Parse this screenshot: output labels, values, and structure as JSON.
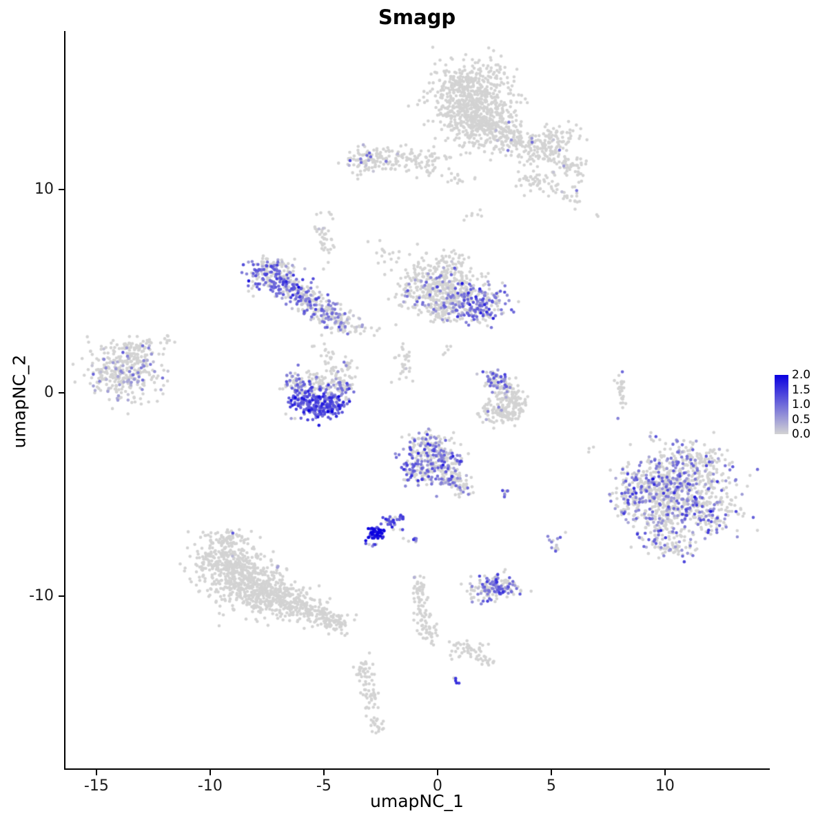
{
  "chart_data": {
    "type": "scatter",
    "title": "Smagp",
    "axes": {
      "xlabel": "umapNC_1",
      "ylabel": "umapNC_2",
      "xlim": [
        -16.36,
        14.55
      ],
      "ylim": [
        -18.47,
        17.8
      ],
      "x_ticks": [
        {
          "value": -15,
          "label": "-15"
        },
        {
          "value": -10,
          "label": "-10"
        },
        {
          "value": -5,
          "label": "-5"
        },
        {
          "value": 0,
          "label": "0"
        },
        {
          "value": 5,
          "label": "5"
        },
        {
          "value": 10,
          "label": "10"
        }
      ],
      "y_ticks": [
        {
          "value": 10,
          "label": "10"
        },
        {
          "value": 0,
          "label": "0"
        },
        {
          "value": -10,
          "label": "-10"
        }
      ],
      "grid": false
    },
    "legend": {
      "position": "right",
      "labels": [
        "2.0",
        "1.5",
        "1.0",
        "0.5",
        "0.0"
      ],
      "max": 2.0,
      "low": "#D3D3D3",
      "high": "#0A00E0"
    },
    "point_radius_px": 2.3,
    "clusters": [
      {
        "cx": 1.5,
        "cy": 14.4,
        "sx": 0.85,
        "sy": 0.95,
        "n": 650
      },
      {
        "cx": 2.1,
        "cy": 13.2,
        "sx": 0.7,
        "sy": 0.5,
        "rot": 20,
        "n": 170
      },
      {
        "cx": 3.4,
        "cy": 12.3,
        "sx": 0.75,
        "sy": 0.45,
        "rot": -15,
        "n": 150,
        "frac": 0.02,
        "mean": 0.6
      },
      {
        "cx": 4.8,
        "cy": 11.9,
        "sx": 0.5,
        "sy": 0.4,
        "n": 80,
        "frac": 0.05,
        "mean": 0.8
      },
      {
        "cx": 5.8,
        "cy": 11.1,
        "sx": 0.45,
        "sy": 0.35,
        "n": 50,
        "frac": 0.02,
        "mean": 0.5
      },
      {
        "cx": 5.3,
        "cy": 12.8,
        "sx": 0.5,
        "sy": 0.3,
        "n": 35
      },
      {
        "cx": -2.2,
        "cy": 11.5,
        "sx": 1.0,
        "sy": 0.3,
        "rot": 5,
        "n": 130,
        "frac": 0.03,
        "mean": 0.8
      },
      {
        "cx": -3.2,
        "cy": 11.5,
        "sx": 0.25,
        "sy": 0.35,
        "n": 30,
        "frac": 0.12,
        "mean": 1.0
      },
      {
        "cx": -0.3,
        "cy": 11.3,
        "sx": 0.5,
        "sy": 0.3,
        "n": 40,
        "frac": 0.02,
        "mean": 0.5
      },
      {
        "cx": 0.8,
        "cy": 10.6,
        "sx": 0.3,
        "sy": 0.2,
        "n": 14
      },
      {
        "cx": 4.3,
        "cy": 10.4,
        "sx": 0.55,
        "sy": 0.25,
        "rot": -10,
        "n": 45,
        "frac": 0.02,
        "mean": 0.5
      },
      {
        "cx": 5.9,
        "cy": 9.7,
        "sx": 0.3,
        "sy": 0.25,
        "n": 20,
        "frac": 0.05,
        "mean": 0.5
      },
      {
        "cx": 7.0,
        "cy": 8.8,
        "sx": 0.08,
        "sy": 0.08,
        "n": 2
      },
      {
        "cx": 1.6,
        "cy": 8.8,
        "sx": 0.3,
        "sy": 0.25,
        "n": 7
      },
      {
        "cx": -7.5,
        "cy": 5.8,
        "sx": 0.45,
        "sy": 0.4,
        "n": 110,
        "frac": 0.6,
        "mean": 0.9
      },
      {
        "cx": -6.6,
        "cy": 5.2,
        "sx": 0.45,
        "sy": 0.35,
        "rot": -30,
        "n": 100,
        "frac": 0.55,
        "mean": 0.9
      },
      {
        "cx": -5.8,
        "cy": 4.6,
        "sx": 0.4,
        "sy": 0.35,
        "rot": -35,
        "n": 90,
        "frac": 0.5,
        "mean": 0.8
      },
      {
        "cx": -5.0,
        "cy": 4.0,
        "sx": 0.4,
        "sy": 0.3,
        "rot": -30,
        "n": 80,
        "frac": 0.45,
        "mean": 0.8
      },
      {
        "cx": -4.4,
        "cy": 3.6,
        "sx": 0.35,
        "sy": 0.3,
        "rot": -20,
        "n": 60,
        "frac": 0.4,
        "mean": 0.7
      },
      {
        "cx": -6.9,
        "cy": 6.2,
        "sx": 0.5,
        "sy": 0.3,
        "rot": -20,
        "n": 40,
        "frac": 0.15,
        "mean": 0.5
      },
      {
        "cx": -3.6,
        "cy": 3.2,
        "sx": 0.4,
        "sy": 0.2,
        "rot": -10,
        "n": 25,
        "frac": 0.1,
        "mean": 0.5
      },
      {
        "cx": -5.0,
        "cy": 7.7,
        "sx": 0.18,
        "sy": 0.6,
        "rot": 10,
        "n": 35,
        "frac": 0.03,
        "mean": 0.5
      },
      {
        "cx": -4.7,
        "cy": 8.8,
        "sx": 0.12,
        "sy": 0.12,
        "n": 4
      },
      {
        "cx": -0.9,
        "cy": 5.1,
        "sx": 0.5,
        "sy": 0.55,
        "n": 130,
        "frac": 0.12,
        "mean": 0.7
      },
      {
        "cx": 0.2,
        "cy": 5.6,
        "sx": 0.6,
        "sy": 0.5,
        "n": 170,
        "frac": 0.1,
        "mean": 0.7
      },
      {
        "cx": 1.0,
        "cy": 4.8,
        "sx": 0.5,
        "sy": 0.45,
        "n": 140,
        "frac": 0.3,
        "mean": 0.8
      },
      {
        "cx": 1.95,
        "cy": 4.35,
        "sx": 0.55,
        "sy": 0.5,
        "n": 170,
        "frac": 0.55,
        "mean": 0.9
      },
      {
        "cx": 0.3,
        "cy": 4.1,
        "sx": 0.45,
        "sy": 0.35,
        "n": 80,
        "frac": 0.2,
        "mean": 0.7
      },
      {
        "cx": 0.6,
        "cy": 6.5,
        "sx": 0.3,
        "sy": 0.3,
        "n": 30,
        "frac": 0.05,
        "mean": 0.5
      },
      {
        "cx": -2.3,
        "cy": 7.0,
        "sx": 0.35,
        "sy": 0.35,
        "n": 16
      },
      {
        "cx": -1.5,
        "cy": 1.5,
        "sx": 0.2,
        "sy": 0.55,
        "rot": 15,
        "n": 30,
        "frac": 0.08,
        "mean": 0.6
      },
      {
        "cx": 0.3,
        "cy": 2.1,
        "sx": 0.25,
        "sy": 0.2,
        "n": 5
      },
      {
        "cx": -13.8,
        "cy": 1.1,
        "sx": 0.8,
        "sy": 0.75,
        "n": 330,
        "frac": 0.2,
        "mean": 0.55
      },
      {
        "cx": -13.2,
        "cy": 2.2,
        "sx": 0.5,
        "sy": 0.3,
        "n": 50,
        "frac": 0.1,
        "mean": 0.5
      },
      {
        "cx": -11.9,
        "cy": 2.5,
        "sx": 0.2,
        "sy": 0.15,
        "n": 8
      },
      {
        "cx": -6.3,
        "cy": 0.5,
        "sx": 0.25,
        "sy": 0.3,
        "n": 50,
        "frac": 0.45,
        "mean": 0.8
      },
      {
        "cx": -5.9,
        "cy": -0.3,
        "sx": 0.35,
        "sy": 0.3,
        "rot": 30,
        "n": 90,
        "frac": 0.75,
        "mean": 1.1
      },
      {
        "cx": -5.2,
        "cy": -0.75,
        "sx": 0.45,
        "sy": 0.3,
        "n": 120,
        "frac": 0.85,
        "mean": 1.2
      },
      {
        "cx": -4.5,
        "cy": -0.4,
        "sx": 0.3,
        "sy": 0.3,
        "rot": -30,
        "n": 80,
        "frac": 0.7,
        "mean": 1.0
      },
      {
        "cx": -4.15,
        "cy": 0.3,
        "sx": 0.25,
        "sy": 0.25,
        "n": 50,
        "frac": 0.5,
        "mean": 0.8
      },
      {
        "cx": -5.2,
        "cy": 0.4,
        "sx": 0.5,
        "sy": 0.3,
        "n": 70,
        "frac": 0.15,
        "mean": 0.5
      },
      {
        "cx": -4.3,
        "cy": 1.3,
        "sx": 0.4,
        "sy": 0.3,
        "n": 35,
        "frac": 0.1,
        "mean": 0.5
      },
      {
        "cx": -5.0,
        "cy": 2.2,
        "sx": 0.5,
        "sy": 0.4,
        "n": 14,
        "frac": 0.05,
        "mean": 0.5
      },
      {
        "cx": 2.55,
        "cy": 0.7,
        "sx": 0.3,
        "sy": 0.25,
        "n": 55,
        "frac": 0.55,
        "mean": 0.9
      },
      {
        "cx": 2.95,
        "cy": 0.1,
        "sx": 0.3,
        "sy": 0.3,
        "n": 60,
        "frac": 0.15,
        "mean": 0.6
      },
      {
        "cx": 3.35,
        "cy": -0.5,
        "sx": 0.3,
        "sy": 0.35,
        "n": 70,
        "frac": 0.05,
        "mean": 0.5
      },
      {
        "cx": 3.0,
        "cy": -1.1,
        "sx": 0.4,
        "sy": 0.25,
        "rot": 10,
        "n": 60,
        "frac": 0.03,
        "mean": 0.5
      },
      {
        "cx": 2.4,
        "cy": -0.9,
        "sx": 0.25,
        "sy": 0.3,
        "n": 35,
        "frac": 0.03,
        "mean": 0.5
      },
      {
        "cx": 8.05,
        "cy": 0.2,
        "sx": 0.13,
        "sy": 0.5,
        "n": 28,
        "frac": 0.25,
        "mean": 0.8
      },
      {
        "cx": -0.6,
        "cy": -2.9,
        "sx": 0.5,
        "sy": 0.45,
        "n": 120,
        "frac": 0.5,
        "mean": 0.9
      },
      {
        "cx": 0.25,
        "cy": -3.4,
        "sx": 0.5,
        "sy": 0.45,
        "n": 120,
        "frac": 0.45,
        "mean": 0.9
      },
      {
        "cx": -0.9,
        "cy": -3.9,
        "sx": 0.35,
        "sy": 0.3,
        "n": 70,
        "frac": 0.5,
        "mean": 0.9
      },
      {
        "cx": 0.6,
        "cy": -4.3,
        "sx": 0.35,
        "sy": 0.3,
        "n": 60,
        "frac": 0.35,
        "mean": 0.8
      },
      {
        "cx": 1.2,
        "cy": -4.8,
        "sx": 0.25,
        "sy": 0.2,
        "n": 20,
        "frac": 0.2,
        "mean": 0.7
      },
      {
        "cx": -0.2,
        "cy": -2.3,
        "sx": 0.3,
        "sy": 0.2,
        "n": 25,
        "frac": 0.3,
        "mean": 0.8
      },
      {
        "cx": -2.75,
        "cy": -6.9,
        "sx": 0.2,
        "sy": 0.17,
        "n": 60,
        "frac": 0.95,
        "mean": 1.7
      },
      {
        "cx": -2.1,
        "cy": -6.4,
        "sx": 0.3,
        "sy": 0.2,
        "rot": -35,
        "n": 25,
        "frac": 0.8,
        "mean": 1.3
      },
      {
        "cx": -1.55,
        "cy": -6.1,
        "sx": 0.15,
        "sy": 0.12,
        "n": 8,
        "frac": 0.7,
        "mean": 1.2
      },
      {
        "cx": -2.85,
        "cy": -7.5,
        "sx": 0.12,
        "sy": 0.15,
        "n": 6,
        "frac": 0.5,
        "mean": 1.0
      },
      {
        "cx": -1.05,
        "cy": -7.25,
        "sx": 0.12,
        "sy": 0.1,
        "n": 6,
        "frac": 0.8,
        "mean": 1.2
      },
      {
        "cx": 3.05,
        "cy": -4.85,
        "sx": 0.15,
        "sy": 0.12,
        "n": 7,
        "frac": 0.75,
        "mean": 1.1
      },
      {
        "cx": 5.15,
        "cy": -7.5,
        "sx": 0.2,
        "sy": 0.25,
        "n": 14,
        "frac": 0.35,
        "mean": 0.8
      },
      {
        "cx": 9.3,
        "cy": -4.3,
        "sx": 0.7,
        "sy": 0.6,
        "n": 160,
        "frac": 0.35,
        "mean": 0.8
      },
      {
        "cx": 11.3,
        "cy": -3.9,
        "sx": 0.9,
        "sy": 0.6,
        "n": 190,
        "frac": 0.3,
        "mean": 0.8
      },
      {
        "cx": 10.3,
        "cy": -5.1,
        "sx": 0.8,
        "sy": 0.7,
        "n": 260,
        "frac": 0.38,
        "mean": 0.85
      },
      {
        "cx": 11.9,
        "cy": -5.9,
        "sx": 0.8,
        "sy": 0.6,
        "n": 170,
        "frac": 0.3,
        "mean": 0.8
      },
      {
        "cx": 9.7,
        "cy": -6.4,
        "sx": 0.7,
        "sy": 0.55,
        "n": 140,
        "frac": 0.33,
        "mean": 0.8
      },
      {
        "cx": 8.4,
        "cy": -5.2,
        "sx": 0.35,
        "sy": 0.45,
        "n": 60,
        "frac": 0.3,
        "mean": 0.8
      },
      {
        "cx": 10.9,
        "cy": -2.9,
        "sx": 0.7,
        "sy": 0.35,
        "n": 70,
        "frac": 0.25,
        "mean": 0.7
      },
      {
        "cx": 10.5,
        "cy": -7.6,
        "sx": 0.45,
        "sy": 0.35,
        "n": 60,
        "frac": 0.25,
        "mean": 0.7
      },
      {
        "cx": 9.4,
        "cy": -2.2,
        "sx": 0.2,
        "sy": 0.15,
        "n": 6,
        "frac": 0.3,
        "mean": 0.8
      },
      {
        "cx": -9.4,
        "cy": -8.4,
        "sx": 0.7,
        "sy": 0.65,
        "n": 260
      },
      {
        "cx": -8.4,
        "cy": -9.3,
        "sx": 0.8,
        "sy": 0.7,
        "n": 300
      },
      {
        "cx": -7.4,
        "cy": -9.9,
        "sx": 0.6,
        "sy": 0.5,
        "n": 180
      },
      {
        "cx": -6.3,
        "cy": -10.4,
        "sx": 0.5,
        "sy": 0.35,
        "rot": -20,
        "n": 120
      },
      {
        "cx": -5.2,
        "cy": -10.9,
        "sx": 0.45,
        "sy": 0.3,
        "rot": -15,
        "n": 90
      },
      {
        "cx": -4.4,
        "cy": -11.3,
        "sx": 0.3,
        "sy": 0.25,
        "n": 45
      },
      {
        "cx": -9.2,
        "cy": -7.3,
        "sx": 0.5,
        "sy": 0.35,
        "n": 70,
        "frac": 0.008,
        "mean": 0.6
      },
      {
        "cx": -7.1,
        "cy": -8.5,
        "sx": 0.1,
        "sy": 0.1,
        "n": 2,
        "frac": 1.0,
        "mean": 0.9
      },
      {
        "cx": 2.6,
        "cy": -9.6,
        "sx": 0.5,
        "sy": 0.3,
        "n": 120,
        "frac": 0.7,
        "mean": 0.9
      },
      {
        "cx": 2.6,
        "cy": -9.6,
        "sx": 0.65,
        "sy": 0.4,
        "n": 40,
        "frac": 0.1,
        "mean": 0.5
      },
      {
        "cx": -0.85,
        "cy": -9.6,
        "sx": 0.15,
        "sy": 0.3,
        "n": 30,
        "frac": 0.05,
        "mean": 0.5
      },
      {
        "cx": -0.65,
        "cy": -10.8,
        "sx": 0.18,
        "sy": 0.5,
        "rot": 5,
        "n": 40
      },
      {
        "cx": -0.35,
        "cy": -11.9,
        "sx": 0.2,
        "sy": 0.25,
        "n": 22
      },
      {
        "cx": 1.3,
        "cy": -12.7,
        "sx": 0.6,
        "sy": 0.22,
        "rot": -18,
        "n": 45
      },
      {
        "cx": 2.3,
        "cy": -13.2,
        "sx": 0.25,
        "sy": 0.15,
        "rot": -15,
        "n": 14
      },
      {
        "cx": -3.3,
        "cy": -13.6,
        "sx": 0.22,
        "sy": 0.3,
        "n": 26
      },
      {
        "cx": -3.0,
        "cy": -14.9,
        "sx": 0.18,
        "sy": 0.55,
        "rot": 5,
        "n": 40
      },
      {
        "cx": -2.75,
        "cy": -16.3,
        "sx": 0.22,
        "sy": 0.25,
        "n": 18
      },
      {
        "cx": 0.75,
        "cy": -14.1,
        "sx": 0.1,
        "sy": 0.1,
        "n": 5,
        "frac": 0.9,
        "mean": 1.4
      },
      {
        "cx": 6.7,
        "cy": -2.7,
        "sx": 0.12,
        "sy": 0.1,
        "n": 3
      }
    ]
  }
}
